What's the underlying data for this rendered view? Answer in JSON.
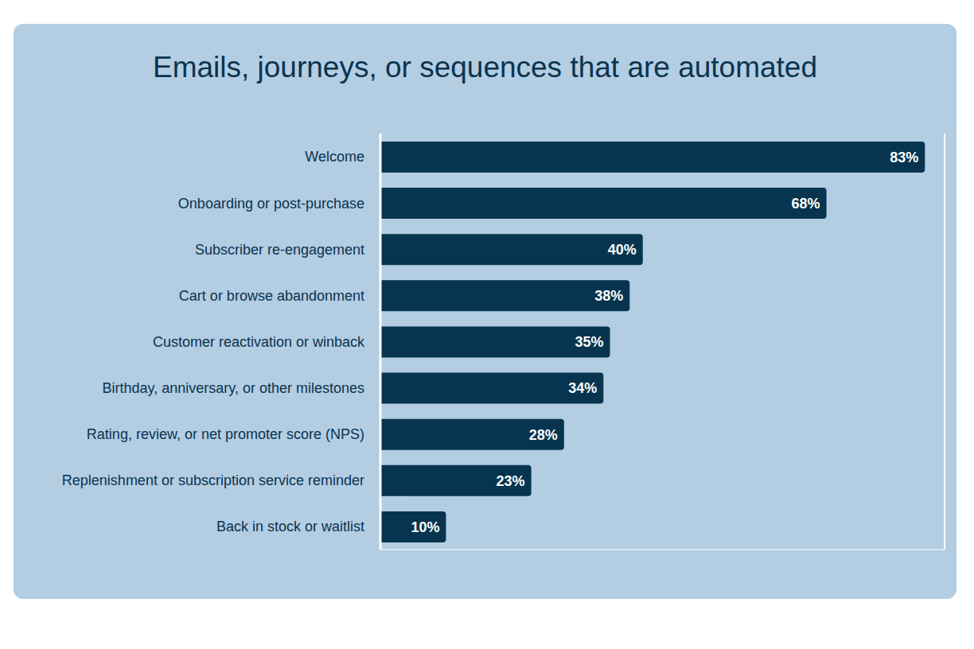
{
  "chart_data": {
    "type": "bar",
    "title": "Emails, journeys, or sequences that are automated",
    "orientation": "horizontal",
    "categories": [
      "Welcome",
      "Onboarding or post-purchase",
      "Subscriber re-engagement",
      "Cart or browse abandonment",
      "Customer reactivation or winback",
      "Birthday, anniversary, or other milestones",
      "Rating, review, or net promoter score (NPS)",
      "Replenishment or subscription service reminder",
      "Back in stock or waitlist"
    ],
    "values": [
      83,
      68,
      40,
      38,
      35,
      34,
      28,
      23,
      10
    ],
    "value_labels": [
      "83%",
      "68%",
      "40%",
      "38%",
      "35%",
      "34%",
      "28%",
      "23%",
      "10%"
    ],
    "color": "#07354f",
    "xlim": [
      0,
      86
    ],
    "xticks": [
      0,
      32.5,
      65
    ],
    "grid": true,
    "data_labels": true,
    "tick_labels": "y"
  }
}
